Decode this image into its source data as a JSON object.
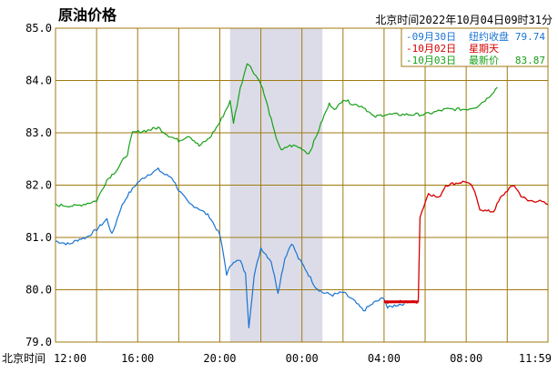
{
  "header": {
    "title": "原油价格",
    "timestamp": "北京时间2022年10月04日09时31分"
  },
  "colors": {
    "grid": "#a07a10",
    "night": "#dcdce8",
    "blue": "#1a74d2",
    "red": "#d70000",
    "green": "#18a018",
    "text": "#000000",
    "title": "#e60000"
  },
  "chart_data": {
    "type": "line",
    "title": "原油价格",
    "xlabel": "北京时间",
    "ylabel": "",
    "ylim": [
      79.0,
      85.0
    ],
    "yticks": [
      "85.0",
      "84.0",
      "83.0",
      "82.0",
      "81.0",
      "80.0",
      "79.0"
    ],
    "xticks": [
      "12:00",
      "16:00",
      "20:00",
      "00:00",
      "04:00",
      "08:00",
      "11:59"
    ],
    "shaded_region": {
      "from": "20:30",
      "to": "01:00"
    },
    "legend": {
      "placement": "top-right",
      "entries": [
        {
          "date": "09月30日",
          "label": "纽约收盘",
          "value": "79.74",
          "color": "#1a74d2"
        },
        {
          "date": "10月02日",
          "label": "星期天",
          "value": "",
          "color": "#d70000"
        },
        {
          "date": "10月03日",
          "label": "最新价",
          "value": "83.87",
          "color": "#18a018"
        }
      ]
    },
    "series": [
      {
        "name": "09月30日",
        "color": "#1a74d2",
        "points": [
          [
            "12:00",
            80.93
          ],
          [
            "12:40",
            80.87
          ],
          [
            "13:10",
            80.97
          ],
          [
            "13:30",
            81.0
          ],
          [
            "14:00",
            81.15
          ],
          [
            "14:30",
            81.35
          ],
          [
            "14:45",
            81.05
          ],
          [
            "15:10",
            81.55
          ],
          [
            "15:30",
            81.8
          ],
          [
            "16:00",
            82.05
          ],
          [
            "16:30",
            82.2
          ],
          [
            "17:00",
            82.3
          ],
          [
            "17:20",
            82.2
          ],
          [
            "17:40",
            82.15
          ],
          [
            "18:00",
            81.9
          ],
          [
            "18:30",
            81.65
          ],
          [
            "19:00",
            81.55
          ],
          [
            "19:30",
            81.4
          ],
          [
            "20:00",
            81.05
          ],
          [
            "20:10",
            80.7
          ],
          [
            "20:20",
            80.3
          ],
          [
            "20:40",
            80.55
          ],
          [
            "21:00",
            80.55
          ],
          [
            "21:15",
            80.3
          ],
          [
            "21:25",
            79.3
          ],
          [
            "21:40",
            80.25
          ],
          [
            "22:00",
            80.8
          ],
          [
            "22:30",
            80.55
          ],
          [
            "22:50",
            79.95
          ],
          [
            "23:10",
            80.6
          ],
          [
            "23:30",
            80.9
          ],
          [
            "23:50",
            80.6
          ],
          [
            "00:10",
            80.4
          ],
          [
            "00:40",
            80.05
          ],
          [
            "01:00",
            79.95
          ],
          [
            "01:30",
            79.9
          ],
          [
            "02:00",
            79.95
          ],
          [
            "02:30",
            79.8
          ],
          [
            "03:00",
            79.6
          ],
          [
            "03:30",
            79.75
          ],
          [
            "04:00",
            79.85
          ],
          [
            "04:10",
            79.65
          ],
          [
            "04:30",
            79.7
          ],
          [
            "05:00",
            79.74
          ]
        ]
      },
      {
        "name": "10月02日",
        "color": "#d70000",
        "points": [
          [
            "04:00",
            79.77
          ],
          [
            "05:40",
            79.77
          ],
          [
            "05:45",
            81.4
          ],
          [
            "06:10",
            81.85
          ],
          [
            "06:40",
            81.75
          ],
          [
            "07:00",
            82.0
          ],
          [
            "07:40",
            82.05
          ],
          [
            "08:00",
            82.07
          ],
          [
            "08:20",
            81.95
          ],
          [
            "08:40",
            81.55
          ],
          [
            "09:00",
            81.5
          ],
          [
            "09:20",
            81.5
          ],
          [
            "09:40",
            81.75
          ],
          [
            "10:00",
            81.9
          ],
          [
            "10:20",
            82.0
          ],
          [
            "10:40",
            81.8
          ],
          [
            "11:00",
            81.7
          ],
          [
            "11:30",
            81.7
          ],
          [
            "11:59",
            81.63
          ]
        ]
      },
      {
        "name": "10月03日",
        "color": "#18a018",
        "points": [
          [
            "12:00",
            81.62
          ],
          [
            "13:00",
            81.6
          ],
          [
            "14:00",
            81.7
          ],
          [
            "14:30",
            82.1
          ],
          [
            "15:00",
            82.3
          ],
          [
            "15:30",
            82.6
          ],
          [
            "15:45",
            83.0
          ],
          [
            "16:30",
            83.05
          ],
          [
            "17:00",
            83.1
          ],
          [
            "17:30",
            82.95
          ],
          [
            "18:00",
            82.85
          ],
          [
            "18:30",
            82.95
          ],
          [
            "19:00",
            82.75
          ],
          [
            "19:30",
            82.9
          ],
          [
            "20:00",
            83.2
          ],
          [
            "20:30",
            83.6
          ],
          [
            "20:40",
            83.2
          ],
          [
            "21:00",
            83.85
          ],
          [
            "21:20",
            84.35
          ],
          [
            "21:40",
            84.15
          ],
          [
            "22:00",
            83.95
          ],
          [
            "22:20",
            83.5
          ],
          [
            "22:40",
            83.0
          ],
          [
            "23:00",
            82.65
          ],
          [
            "23:20",
            82.75
          ],
          [
            "23:40",
            82.75
          ],
          [
            "00:00",
            82.7
          ],
          [
            "00:20",
            82.6
          ],
          [
            "00:40",
            82.9
          ],
          [
            "01:00",
            83.25
          ],
          [
            "01:20",
            83.55
          ],
          [
            "01:40",
            83.45
          ],
          [
            "02:00",
            83.65
          ],
          [
            "02:30",
            83.55
          ],
          [
            "03:00",
            83.5
          ],
          [
            "03:30",
            83.3
          ],
          [
            "04:00",
            83.35
          ],
          [
            "05:00",
            83.35
          ],
          [
            "06:00",
            83.35
          ],
          [
            "07:00",
            83.45
          ],
          [
            "08:00",
            83.45
          ],
          [
            "08:30",
            83.5
          ],
          [
            "09:00",
            83.65
          ],
          [
            "09:31",
            83.87
          ]
        ]
      }
    ]
  }
}
